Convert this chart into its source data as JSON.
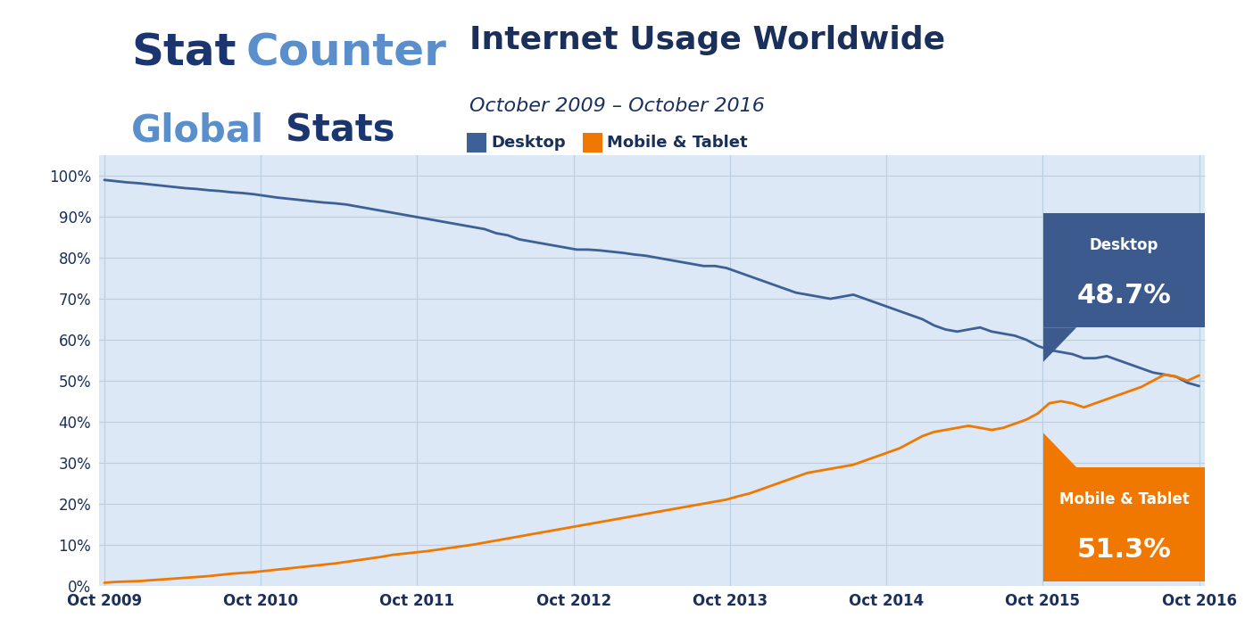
{
  "title": "Internet Usage Worldwide",
  "subtitle": "October 2009 – October 2016",
  "legend_desktop": "Desktop",
  "legend_mobile": "Mobile & Tablet",
  "desktop_label": "Desktop",
  "desktop_value": "48.7%",
  "mobile_label": "Mobile & Tablet",
  "mobile_value": "51.3%",
  "background_outer": "#ffffff",
  "background_header": "#ffffff",
  "background_inner": "#dce8f5",
  "desktop_color": "#3d6096",
  "mobile_color": "#f07800",
  "title_color": "#1a2f5a",
  "subtitle_color": "#1a3060",
  "axis_label_color": "#1a2f5a",
  "grid_color": "#b8cfe0",
  "desktop_box_color": "#3d5a8e",
  "mobile_box_color": "#f07800",
  "legend_square_desktop": "#3d6096",
  "legend_square_mobile": "#f07800",
  "xtick_labels": [
    "Oct 2009",
    "Oct 2010",
    "Oct 2011",
    "Oct 2012",
    "Oct 2013",
    "Oct 2014",
    "Oct 2015",
    "Oct 2016"
  ],
  "ytick_labels": [
    "0%",
    "10%",
    "20%",
    "30%",
    "40%",
    "50%",
    "60%",
    "70%",
    "80%",
    "90%",
    "100%"
  ],
  "desktop_data": [
    99.0,
    98.7,
    98.4,
    98.2,
    97.9,
    97.6,
    97.3,
    97.0,
    96.8,
    96.5,
    96.3,
    96.0,
    95.8,
    95.5,
    95.1,
    94.7,
    94.4,
    94.1,
    93.8,
    93.5,
    93.3,
    93.0,
    92.5,
    92.0,
    91.5,
    91.0,
    90.5,
    90.0,
    89.5,
    89.0,
    88.5,
    88.0,
    87.5,
    87.0,
    86.0,
    85.5,
    84.5,
    84.0,
    83.5,
    83.0,
    82.5,
    82.0,
    82.0,
    81.8,
    81.5,
    81.2,
    80.8,
    80.5,
    80.0,
    79.5,
    79.0,
    78.5,
    78.0,
    78.0,
    77.5,
    76.5,
    75.5,
    74.5,
    73.5,
    72.5,
    71.5,
    71.0,
    70.5,
    70.0,
    70.5,
    71.0,
    70.0,
    69.0,
    68.0,
    67.0,
    66.0,
    65.0,
    63.5,
    62.5,
    62.0,
    62.5,
    63.0,
    62.0,
    61.5,
    61.0,
    60.0,
    58.5,
    57.5,
    57.0,
    56.5,
    55.5,
    55.5,
    56.0,
    55.0,
    54.0,
    53.0,
    52.0,
    51.5,
    51.0,
    49.5,
    48.7
  ],
  "mobile_data": [
    0.7,
    0.9,
    1.0,
    1.1,
    1.3,
    1.5,
    1.7,
    1.9,
    2.1,
    2.3,
    2.6,
    2.9,
    3.1,
    3.3,
    3.6,
    3.9,
    4.2,
    4.5,
    4.8,
    5.1,
    5.4,
    5.8,
    6.2,
    6.6,
    7.0,
    7.5,
    7.8,
    8.1,
    8.4,
    8.8,
    9.2,
    9.6,
    10.0,
    10.5,
    11.0,
    11.5,
    12.0,
    12.5,
    13.0,
    13.5,
    14.0,
    14.5,
    15.0,
    15.5,
    16.0,
    16.5,
    17.0,
    17.5,
    18.0,
    18.5,
    19.0,
    19.5,
    20.0,
    20.5,
    21.0,
    21.8,
    22.5,
    23.5,
    24.5,
    25.5,
    26.5,
    27.5,
    28.0,
    28.5,
    29.0,
    29.5,
    30.5,
    31.5,
    32.5,
    33.5,
    35.0,
    36.5,
    37.5,
    38.0,
    38.5,
    39.0,
    38.5,
    38.0,
    38.5,
    39.5,
    40.5,
    42.0,
    44.5,
    45.0,
    44.5,
    43.5,
    44.5,
    45.5,
    46.5,
    47.5,
    48.5,
    50.0,
    51.5,
    51.0,
    50.0,
    51.3
  ],
  "n_points": 96
}
